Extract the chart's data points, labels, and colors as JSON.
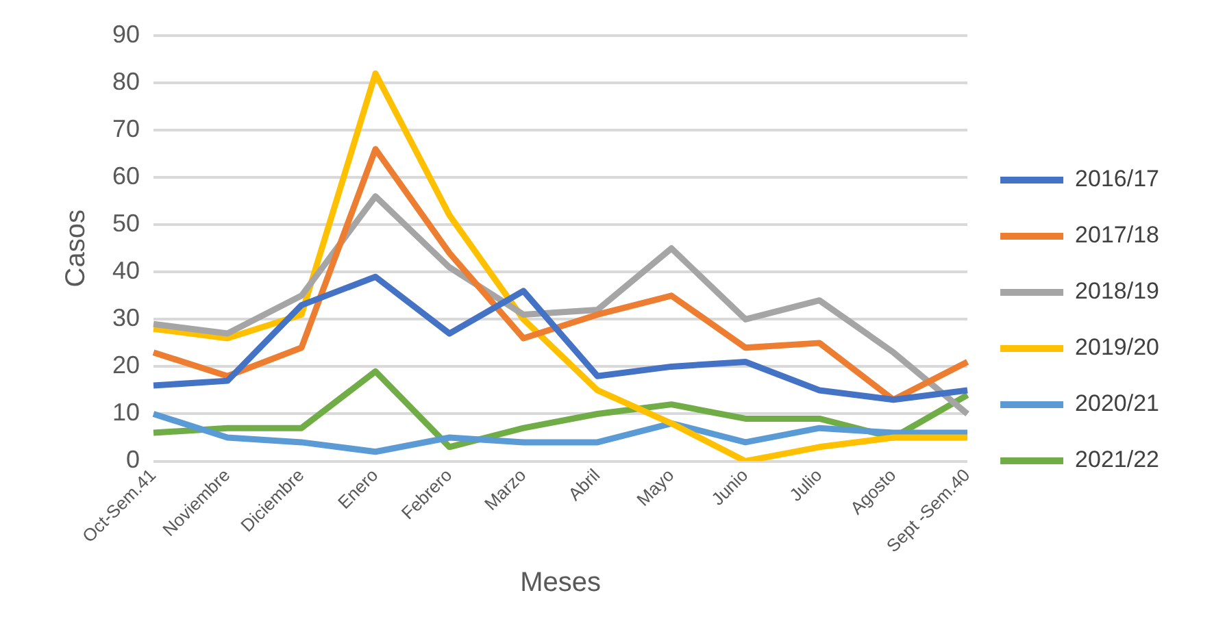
{
  "chart_data": {
    "type": "line",
    "xlabel": "Meses",
    "ylabel": "Casos",
    "categories": [
      "Oct-Sem.41",
      "Noviembre",
      "Diciembre",
      "Enero",
      "Febrero",
      "Marzo",
      "Abril",
      "Mayo",
      "Junio",
      "Julio",
      "Agosto",
      "Sept -Sem.40"
    ],
    "series": [
      {
        "name": "2016/17",
        "color": "#4472c4",
        "values": [
          16,
          17,
          33,
          39,
          27,
          36,
          18,
          20,
          21,
          15,
          13,
          15
        ]
      },
      {
        "name": "2017/18",
        "color": "#ed7d31",
        "values": [
          23,
          18,
          24,
          66,
          44,
          26,
          31,
          35,
          24,
          25,
          13,
          21
        ]
      },
      {
        "name": "2018/19",
        "color": "#a5a5a5",
        "values": [
          29,
          27,
          35,
          56,
          41,
          31,
          32,
          45,
          30,
          34,
          23,
          10
        ]
      },
      {
        "name": "2019/20",
        "color": "#ffc000",
        "values": [
          28,
          26,
          31,
          82,
          52,
          30,
          15,
          8,
          0,
          3,
          5,
          5
        ]
      },
      {
        "name": "2020/21",
        "color": "#5b9bd5",
        "values": [
          10,
          5,
          4,
          2,
          5,
          4,
          4,
          8,
          4,
          7,
          6,
          6
        ]
      },
      {
        "name": "2021/22",
        "color": "#70ad47",
        "values": [
          6,
          7,
          7,
          19,
          3,
          7,
          10,
          12,
          9,
          9,
          5,
          14
        ]
      }
    ],
    "ylim": [
      0,
      90
    ],
    "yticks": [
      0,
      10,
      20,
      30,
      40,
      50,
      60,
      70,
      80,
      90
    ],
    "grid": "y",
    "legend": "right",
    "marker": "none",
    "line_style": "solid"
  }
}
